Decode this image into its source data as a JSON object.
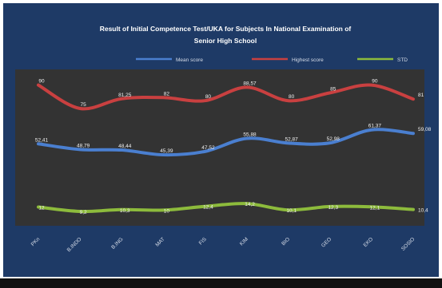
{
  "chart_data": {
    "type": "line",
    "title_line1": "Result  of Initial Competence  Test/UKA for Subjects In National  Examination  of",
    "title_line2": "Senior High School",
    "categories": [
      "PKn",
      "B.INDO",
      "B.ING",
      "MAT",
      "FIS",
      "KIM",
      "BIO",
      "GEO",
      "EKO",
      "SOSIO"
    ],
    "series": [
      {
        "name": "Mean score",
        "color": "#4a7fd0",
        "values": [
          52.41,
          48.79,
          48.44,
          45.39,
          47.52,
          55.88,
          52.87,
          52.98,
          61.37,
          59.08
        ],
        "labels": [
          "52,41",
          "48,79",
          "48,44",
          "45,39",
          "47,52",
          "55,88",
          "52,87",
          "52,98",
          "61,37",
          "59,08"
        ]
      },
      {
        "name": "Highest score",
        "color": "#c94040",
        "values": [
          90,
          75,
          81.25,
          82,
          80,
          88.57,
          80,
          85,
          90,
          81
        ],
        "labels": [
          "90",
          "75",
          "81,25",
          "82",
          "80",
          "88,57",
          "80",
          "85",
          "90",
          "81"
        ]
      },
      {
        "name": "STD",
        "color": "#8dbb3c",
        "values": [
          12,
          9.2,
          10.3,
          10,
          12.4,
          14.2,
          10.1,
          12.3,
          12.1,
          10.4
        ],
        "labels": [
          "12",
          "9,2",
          "10,3",
          "10",
          "12,4",
          "14,2",
          "10,1",
          "12,3",
          "12,1",
          "10,4"
        ]
      }
    ],
    "ylim": [
      0,
      100
    ],
    "grid": false,
    "legend_position": "top"
  }
}
